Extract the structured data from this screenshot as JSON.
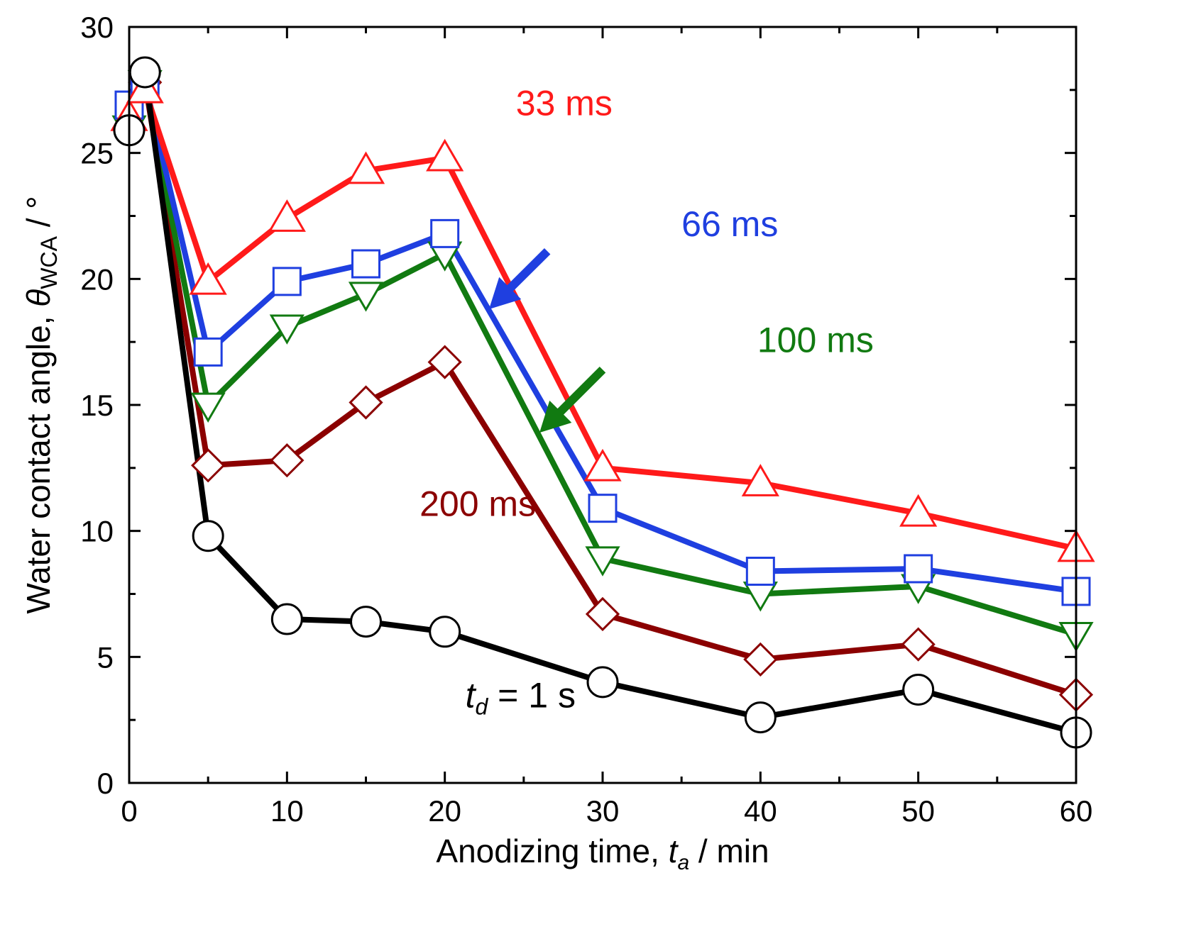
{
  "chart_data": {
    "type": "line",
    "title": "",
    "xlabel": {
      "main": "Anodizing time, ",
      "var": "t",
      "sub": "a",
      "unit": " / min"
    },
    "ylabel": {
      "main": "Water contact angle, ",
      "var": "θ",
      "sub": "WCA",
      "unit": " / °"
    },
    "xlim": [
      0,
      60
    ],
    "ylim": [
      0,
      30
    ],
    "xticks": [
      0,
      10,
      20,
      30,
      40,
      50,
      60
    ],
    "yticks": [
      0,
      5,
      10,
      15,
      20,
      25,
      30
    ],
    "x": [
      0,
      1,
      5,
      10,
      15,
      20,
      30,
      40,
      50,
      60
    ],
    "series": [
      {
        "name": "200 ms",
        "color": "#8b0000",
        "marker": "diamond",
        "values": [
          26.0,
          27.8,
          12.6,
          12.8,
          15.1,
          16.7,
          6.7,
          4.9,
          5.5,
          3.5
        ]
      },
      {
        "name": "100 ms",
        "color": "#117a11",
        "marker": "triangle-down",
        "values": [
          26.0,
          27.8,
          15.0,
          18.1,
          19.4,
          21.0,
          8.9,
          7.5,
          7.8,
          5.9
        ]
      },
      {
        "name": "66 ms",
        "color": "#1f3fe0",
        "marker": "square",
        "values": [
          26.9,
          27.8,
          17.1,
          19.9,
          20.6,
          21.8,
          10.9,
          8.4,
          8.5,
          7.6
        ]
      },
      {
        "name": "33 ms",
        "color": "#ff1a1a",
        "marker": "triangle-up",
        "values": [
          26.4,
          27.5,
          19.9,
          22.4,
          24.3,
          24.8,
          12.5,
          11.9,
          10.7,
          9.3
        ]
      },
      {
        "name": "t_d = 1 s",
        "label": {
          "var": "t",
          "sub": "d",
          "rest": " = 1 s"
        },
        "color": "#000000",
        "marker": "circle",
        "values": [
          25.9,
          28.2,
          9.8,
          6.5,
          6.4,
          6.0,
          4.0,
          2.6,
          3.7,
          2.0
        ]
      }
    ],
    "annotations": [
      {
        "text": "33 ms",
        "color": "#ff1a1a",
        "x": 24.5,
        "y": 26.5
      },
      {
        "text": "66 ms",
        "color": "#1f3fe0",
        "x": 35.0,
        "y": 21.7
      },
      {
        "text": "100 ms",
        "color": "#117a11",
        "x": 39.8,
        "y": 17.1
      },
      {
        "text": "200 ms",
        "color": "#8b0000",
        "x": 18.4,
        "y": 10.6
      },
      {
        "text": "t_d = 1 s",
        "color": "#000000",
        "x": 21.3,
        "y": 3.0
      }
    ]
  }
}
